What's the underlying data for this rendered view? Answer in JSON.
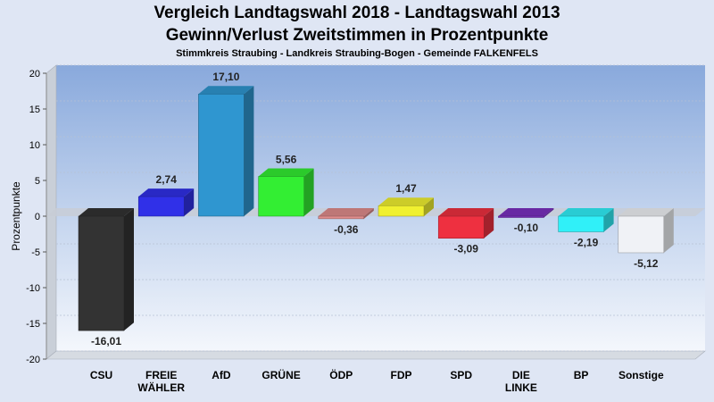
{
  "title": "Vergleich Landtagswahl 2018 - Landtagswahl 2013",
  "subtitle": "Gewinn/Verlust Zweitstimmen in Prozentpunkte",
  "subsubtitle": "Stimmkreis Straubing - Landkreis Straubing-Bogen - Gemeinde FALKENFELS",
  "chart_data": {
    "type": "bar",
    "ylabel": "Prozentpunkte",
    "xlabel": "",
    "ylim": [
      -20,
      20
    ],
    "yticks": [
      20,
      15,
      10,
      5,
      0,
      -5,
      -10,
      -15,
      -20
    ],
    "ytick_labels": [
      "20",
      "15",
      "10",
      "5",
      "0",
      "-5",
      "-10",
      "-15",
      "-20"
    ],
    "grid": true,
    "categories": [
      [
        "CSU"
      ],
      [
        "FREIE",
        "WÄHLER"
      ],
      [
        "AfD"
      ],
      [
        "GRÜNE"
      ],
      [
        "ÖDP"
      ],
      [
        "FDP"
      ],
      [
        "SPD"
      ],
      [
        "DIE",
        "LINKE"
      ],
      [
        "BP"
      ],
      [
        "Sonstige"
      ]
    ],
    "values": [
      -16.01,
      2.74,
      17.1,
      5.56,
      -0.36,
      1.47,
      -3.09,
      -0.1,
      -2.19,
      -5.12
    ],
    "labels": [
      "-16,01",
      "2,74",
      "17,10",
      "5,56",
      "-0,36",
      "1,47",
      "-3,09",
      "-0,10",
      "-2,19",
      "-5,12"
    ],
    "colors": [
      "#333333",
      "#3030e8",
      "#2f96d0",
      "#33ee33",
      "#e08c8c",
      "#f0f030",
      "#ee3040",
      "#7a2fc0",
      "#30f0f8",
      "#f0f2f6"
    ]
  }
}
